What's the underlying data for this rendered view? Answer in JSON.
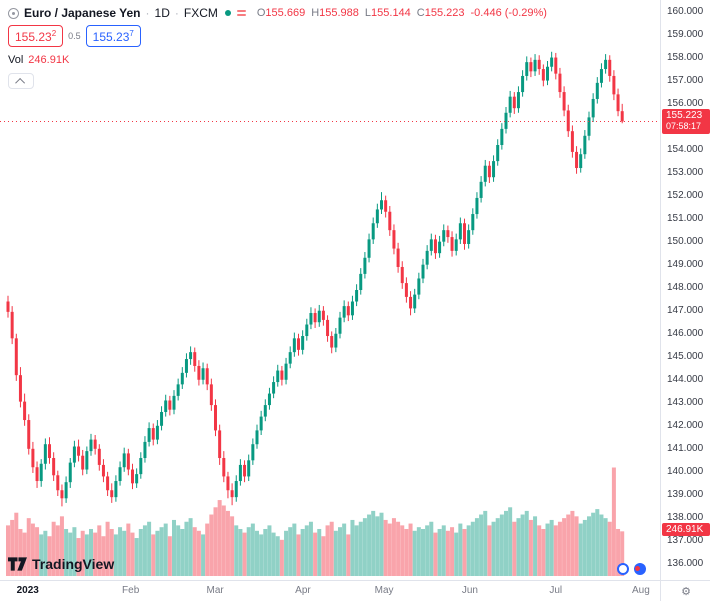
{
  "header": {
    "symbol_name": "Euro / Japanese Yen",
    "separator": "·",
    "timeframe": "1D",
    "exchange": "FXCM",
    "ohlc": {
      "o_label": "O",
      "o": "155.669",
      "h_label": "H",
      "h": "155.988",
      "l_label": "L",
      "l": "155.144",
      "c_label": "C",
      "c": "155.223",
      "change": "-0.446 (-0.29%)"
    },
    "bid": {
      "main": "155.23",
      "sup": "2"
    },
    "spread": "0.5",
    "ask": {
      "main": "155.23",
      "sup": "7"
    },
    "vol_label": "Vol",
    "vol_value": "246.91K"
  },
  "footer": {
    "logo_text": "TradingView"
  },
  "icons": {
    "gear": "⚙"
  },
  "price_scale": {
    "price_tag": {
      "price": "155.223",
      "countdown": "07:58:17"
    },
    "volume_tag": "246.91K"
  },
  "chart_data": {
    "type": "candlestick",
    "title": "Euro / Japanese Yen, 1D, FXCM",
    "ylim": [
      135.3,
      160.5
    ],
    "y_ticks": [
      "160.000",
      "159.000",
      "158.000",
      "157.000",
      "156.000",
      "155.000",
      "154.000",
      "153.000",
      "152.000",
      "151.000",
      "150.000",
      "149.000",
      "148.000",
      "147.000",
      "146.000",
      "145.000",
      "144.000",
      "143.000",
      "142.000",
      "141.000",
      "140.000",
      "139.000",
      "138.000",
      "137.000",
      "136.000"
    ],
    "x_ticks": [
      {
        "label": "2023",
        "pos": 0.042,
        "bold": true
      },
      {
        "label": "Feb",
        "pos": 0.198
      },
      {
        "label": "Mar",
        "pos": 0.326
      },
      {
        "label": "Apr",
        "pos": 0.459
      },
      {
        "label": "May",
        "pos": 0.582
      },
      {
        "label": "Jun",
        "pos": 0.712
      },
      {
        "label": "Jul",
        "pos": 0.842
      },
      {
        "label": "Aug",
        "pos": 0.971
      }
    ],
    "last": {
      "price": 155.223,
      "countdown": "07:58:17",
      "direction": "down",
      "volume_k": 246.91
    },
    "colors": {
      "up": "#089981",
      "down": "#f23645",
      "vol_up": "rgba(8,153,129,0.45)",
      "vol_down": "rgba(242,54,69,0.45)",
      "last_line": "#f23645"
    },
    "volume_unit": "K",
    "candles_format": [
      "open",
      "high",
      "low",
      "close",
      "volume_k"
    ],
    "candles": [
      [
        147.4,
        147.65,
        146.7,
        146.95,
        280
      ],
      [
        146.95,
        147.2,
        145.55,
        145.8,
        310
      ],
      [
        145.8,
        146.0,
        143.95,
        144.2,
        350
      ],
      [
        144.2,
        144.55,
        142.8,
        143.05,
        260
      ],
      [
        143.05,
        143.4,
        142.0,
        142.25,
        240
      ],
      [
        142.25,
        142.5,
        140.75,
        141.0,
        320
      ],
      [
        141.0,
        141.3,
        139.95,
        140.2,
        290
      ],
      [
        140.2,
        140.45,
        139.3,
        139.6,
        270
      ],
      [
        139.6,
        140.55,
        139.35,
        140.35,
        230
      ],
      [
        140.35,
        141.45,
        140.1,
        141.2,
        250
      ],
      [
        141.2,
        141.5,
        140.35,
        140.6,
        220
      ],
      [
        140.6,
        140.85,
        139.6,
        139.85,
        300
      ],
      [
        139.85,
        140.05,
        138.95,
        139.2,
        280
      ],
      [
        139.2,
        139.45,
        138.5,
        138.85,
        330
      ],
      [
        138.85,
        139.8,
        138.65,
        139.55,
        260
      ],
      [
        139.55,
        140.6,
        139.3,
        140.4,
        240
      ],
      [
        140.4,
        141.35,
        140.2,
        141.1,
        270
      ],
      [
        141.1,
        141.4,
        140.45,
        140.7,
        210
      ],
      [
        140.7,
        140.95,
        139.85,
        140.1,
        250
      ],
      [
        140.1,
        141.1,
        139.9,
        140.9,
        230
      ],
      [
        140.9,
        141.65,
        140.7,
        141.4,
        260
      ],
      [
        141.4,
        141.6,
        140.75,
        141.0,
        240
      ],
      [
        141.0,
        141.2,
        140.05,
        140.3,
        280
      ],
      [
        140.3,
        140.55,
        139.55,
        139.8,
        220
      ],
      [
        139.8,
        140.0,
        138.95,
        139.2,
        300
      ],
      [
        139.2,
        139.5,
        138.65,
        138.9,
        260
      ],
      [
        138.9,
        139.85,
        138.7,
        139.6,
        230
      ],
      [
        139.6,
        140.45,
        139.4,
        140.2,
        270
      ],
      [
        140.2,
        141.05,
        140.0,
        140.8,
        250
      ],
      [
        140.8,
        141.0,
        139.85,
        140.1,
        290
      ],
      [
        140.1,
        140.35,
        139.25,
        139.5,
        240
      ],
      [
        139.5,
        140.15,
        139.3,
        139.9,
        210
      ],
      [
        139.9,
        140.85,
        139.7,
        140.6,
        260
      ],
      [
        140.6,
        141.55,
        140.4,
        141.3,
        280
      ],
      [
        141.3,
        142.15,
        141.1,
        141.9,
        300
      ],
      [
        141.9,
        142.1,
        141.15,
        141.4,
        230
      ],
      [
        141.4,
        142.25,
        141.2,
        142.0,
        250
      ],
      [
        142.0,
        142.85,
        141.8,
        142.6,
        270
      ],
      [
        142.6,
        143.35,
        142.4,
        143.1,
        290
      ],
      [
        143.1,
        143.3,
        142.45,
        142.7,
        220
      ],
      [
        142.7,
        143.55,
        142.5,
        143.3,
        310
      ],
      [
        143.3,
        144.05,
        143.1,
        143.8,
        280
      ],
      [
        143.8,
        144.55,
        143.6,
        144.3,
        260
      ],
      [
        144.3,
        145.15,
        144.1,
        144.9,
        300
      ],
      [
        144.9,
        145.45,
        144.65,
        145.2,
        320
      ],
      [
        145.2,
        145.4,
        144.35,
        144.6,
        270
      ],
      [
        144.6,
        144.85,
        143.75,
        144.0,
        250
      ],
      [
        144.0,
        144.75,
        143.8,
        144.5,
        230
      ],
      [
        144.5,
        144.7,
        143.55,
        143.8,
        290
      ],
      [
        143.8,
        144.05,
        142.65,
        142.9,
        340
      ],
      [
        142.9,
        143.15,
        141.55,
        141.8,
        380
      ],
      [
        141.8,
        142.05,
        140.3,
        140.6,
        420
      ],
      [
        140.6,
        140.9,
        139.55,
        139.8,
        390
      ],
      [
        139.8,
        140.0,
        138.85,
        139.2,
        360
      ],
      [
        139.2,
        139.5,
        138.55,
        138.9,
        330
      ],
      [
        138.9,
        139.85,
        138.7,
        139.6,
        280
      ],
      [
        139.6,
        140.55,
        139.4,
        140.3,
        260
      ],
      [
        140.3,
        140.5,
        139.55,
        139.8,
        240
      ],
      [
        139.8,
        140.75,
        139.6,
        140.5,
        270
      ],
      [
        140.5,
        141.45,
        140.3,
        141.2,
        290
      ],
      [
        141.2,
        142.05,
        141.0,
        141.8,
        250
      ],
      [
        141.8,
        142.65,
        141.6,
        142.4,
        230
      ],
      [
        142.4,
        143.15,
        142.2,
        142.9,
        260
      ],
      [
        142.9,
        143.65,
        142.7,
        143.4,
        280
      ],
      [
        143.4,
        144.15,
        143.2,
        143.9,
        240
      ],
      [
        143.9,
        144.65,
        143.7,
        144.4,
        220
      ],
      [
        144.4,
        144.6,
        143.75,
        144.0,
        200
      ],
      [
        144.0,
        144.95,
        143.8,
        144.7,
        250
      ],
      [
        144.7,
        145.45,
        144.5,
        145.2,
        270
      ],
      [
        145.2,
        146.05,
        145.0,
        145.8,
        290
      ],
      [
        145.8,
        146.0,
        145.05,
        145.3,
        230
      ],
      [
        145.3,
        146.15,
        145.1,
        145.9,
        260
      ],
      [
        145.9,
        146.65,
        145.7,
        146.4,
        280
      ],
      [
        146.4,
        147.15,
        146.2,
        146.9,
        300
      ],
      [
        146.9,
        147.1,
        146.25,
        146.5,
        240
      ],
      [
        146.5,
        147.25,
        146.3,
        147.0,
        260
      ],
      [
        147.0,
        147.2,
        146.35,
        146.6,
        220
      ],
      [
        146.6,
        146.8,
        145.65,
        145.9,
        280
      ],
      [
        145.9,
        146.1,
        145.15,
        145.4,
        300
      ],
      [
        145.4,
        146.25,
        145.2,
        146.0,
        250
      ],
      [
        146.0,
        146.95,
        145.8,
        146.7,
        270
      ],
      [
        146.7,
        147.45,
        146.5,
        147.2,
        290
      ],
      [
        147.2,
        147.4,
        146.55,
        146.8,
        230
      ],
      [
        146.8,
        147.65,
        146.6,
        147.4,
        310
      ],
      [
        147.4,
        148.15,
        147.2,
        147.9,
        280
      ],
      [
        147.9,
        148.85,
        147.7,
        148.6,
        300
      ],
      [
        148.6,
        149.55,
        148.4,
        149.3,
        320
      ],
      [
        149.3,
        150.35,
        149.1,
        150.1,
        340
      ],
      [
        150.1,
        151.05,
        149.9,
        150.8,
        360
      ],
      [
        150.8,
        151.65,
        150.6,
        151.4,
        330
      ],
      [
        151.4,
        152.15,
        151.2,
        151.8,
        350
      ],
      [
        151.8,
        152.0,
        151.05,
        151.3,
        310
      ],
      [
        151.3,
        151.55,
        150.25,
        150.5,
        290
      ],
      [
        150.5,
        150.75,
        149.45,
        149.7,
        320
      ],
      [
        149.7,
        149.95,
        148.65,
        148.9,
        300
      ],
      [
        148.9,
        149.15,
        147.95,
        148.2,
        280
      ],
      [
        148.2,
        148.45,
        147.35,
        147.6,
        260
      ],
      [
        147.6,
        147.85,
        146.8,
        147.1,
        290
      ],
      [
        147.1,
        147.95,
        146.9,
        147.7,
        250
      ],
      [
        147.7,
        148.65,
        147.5,
        148.4,
        270
      ],
      [
        148.4,
        149.25,
        148.2,
        149.0,
        260
      ],
      [
        149.0,
        149.85,
        148.8,
        149.6,
        280
      ],
      [
        149.6,
        150.35,
        149.4,
        150.1,
        300
      ],
      [
        150.1,
        150.3,
        149.25,
        149.5,
        240
      ],
      [
        149.5,
        150.25,
        149.3,
        150.0,
        260
      ],
      [
        150.0,
        150.75,
        149.8,
        150.5,
        280
      ],
      [
        150.5,
        150.7,
        149.95,
        150.2,
        250
      ],
      [
        150.2,
        150.45,
        149.35,
        149.6,
        270
      ],
      [
        149.6,
        150.35,
        149.4,
        150.1,
        240
      ],
      [
        150.1,
        151.05,
        149.9,
        150.8,
        290
      ],
      [
        150.8,
        151.0,
        149.65,
        149.9,
        260
      ],
      [
        149.9,
        150.75,
        149.7,
        150.5,
        280
      ],
      [
        150.5,
        151.45,
        150.3,
        151.2,
        300
      ],
      [
        151.2,
        152.15,
        151.0,
        151.9,
        320
      ],
      [
        151.9,
        152.85,
        151.7,
        152.6,
        340
      ],
      [
        152.6,
        153.55,
        152.4,
        153.3,
        360
      ],
      [
        153.3,
        153.5,
        152.55,
        152.8,
        280
      ],
      [
        152.8,
        153.75,
        152.6,
        153.5,
        300
      ],
      [
        153.5,
        154.45,
        153.3,
        154.2,
        320
      ],
      [
        154.2,
        155.15,
        154.0,
        154.9,
        340
      ],
      [
        154.9,
        155.85,
        154.7,
        155.6,
        360
      ],
      [
        155.6,
        156.55,
        155.4,
        156.3,
        380
      ],
      [
        156.3,
        156.5,
        155.55,
        155.8,
        300
      ],
      [
        155.8,
        156.75,
        155.6,
        156.5,
        320
      ],
      [
        156.5,
        157.45,
        156.3,
        157.2,
        340
      ],
      [
        157.2,
        158.05,
        157.0,
        157.8,
        360
      ],
      [
        157.8,
        158.0,
        157.15,
        157.4,
        310
      ],
      [
        157.4,
        158.15,
        157.2,
        157.9,
        330
      ],
      [
        157.9,
        158.1,
        157.25,
        157.5,
        280
      ],
      [
        157.5,
        157.7,
        156.75,
        157.0,
        260
      ],
      [
        157.0,
        157.85,
        156.8,
        157.6,
        290
      ],
      [
        157.6,
        158.25,
        157.4,
        158.0,
        310
      ],
      [
        158.0,
        158.2,
        157.05,
        157.3,
        280
      ],
      [
        157.3,
        157.55,
        156.25,
        156.5,
        300
      ],
      [
        156.5,
        156.75,
        155.45,
        155.7,
        320
      ],
      [
        155.7,
        155.95,
        154.55,
        154.8,
        340
      ],
      [
        154.8,
        155.05,
        153.65,
        153.9,
        360
      ],
      [
        153.9,
        154.15,
        152.95,
        153.2,
        330
      ],
      [
        153.2,
        154.05,
        153.0,
        153.8,
        290
      ],
      [
        153.8,
        154.85,
        153.6,
        154.6,
        310
      ],
      [
        154.6,
        155.65,
        154.4,
        155.4,
        330
      ],
      [
        155.4,
        156.45,
        155.2,
        156.2,
        350
      ],
      [
        156.2,
        157.15,
        156.0,
        156.9,
        370
      ],
      [
        156.9,
        157.75,
        156.7,
        157.5,
        340
      ],
      [
        157.5,
        158.15,
        157.3,
        157.9,
        320
      ],
      [
        157.9,
        158.1,
        156.95,
        157.2,
        300
      ],
      [
        157.2,
        157.45,
        156.15,
        156.4,
        600
      ],
      [
        156.4,
        156.65,
        155.45,
        155.67,
        260
      ],
      [
        155.669,
        155.988,
        155.144,
        155.223,
        247
      ]
    ]
  }
}
